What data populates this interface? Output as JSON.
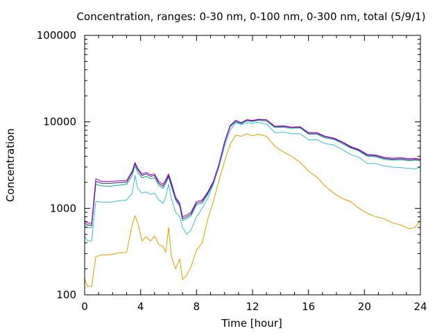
{
  "chart_data": {
    "type": "line",
    "title": "Concentration, ranges: 0-30 nm, 0-100 nm, 0-300 nm, total (5/9/1)",
    "xlabel": "Time [hour]",
    "ylabel": "Concentration",
    "xlim": [
      0,
      24
    ],
    "ylim": [
      100,
      100000
    ],
    "y_scale": "log",
    "grid": false,
    "x_ticks": [
      0,
      4,
      8,
      12,
      16,
      20,
      24
    ],
    "x_tick_labels": [
      "0",
      "4",
      "8",
      "12",
      "16",
      "20",
      "24"
    ],
    "y_ticks": [
      100,
      1000,
      10000,
      100000
    ],
    "y_tick_labels": [
      "100",
      "1000",
      "10000",
      "100000"
    ],
    "series": [
      {
        "color": "#e09a00",
        "x": [
          0,
          0.2,
          0.5,
          0.8,
          1.2,
          1.8,
          2.4,
          3.0,
          3.4,
          3.6,
          3.8,
          4.1,
          4.4,
          4.7,
          5.0,
          5.3,
          5.6,
          5.8,
          6.0,
          6.2,
          6.5,
          6.8,
          7.0,
          7.3,
          7.6,
          8.0,
          8.4,
          8.8,
          9.2,
          9.6,
          10.0,
          10.4,
          10.8,
          11.2,
          11.6,
          12.0,
          12.4,
          13.0,
          13.6,
          14.2,
          14.8,
          15.4,
          16.0,
          16.6,
          17.2,
          17.8,
          18.4,
          19.0,
          19.6,
          20.2,
          20.8,
          21.4,
          22.0,
          22.6,
          23.2,
          23.6,
          24.0
        ],
        "y": [
          155,
          125,
          125,
          275,
          290,
          290,
          305,
          310,
          650,
          820,
          680,
          420,
          470,
          420,
          480,
          380,
          360,
          310,
          600,
          280,
          200,
          260,
          150,
          170,
          210,
          330,
          400,
          750,
          1200,
          2100,
          3500,
          5500,
          7000,
          6800,
          7300,
          6900,
          7200,
          6800,
          5200,
          4500,
          4000,
          3400,
          2700,
          2300,
          1800,
          1500,
          1300,
          1200,
          1000,
          880,
          800,
          760,
          680,
          640,
          580,
          600,
          720
        ]
      },
      {
        "color": "#3fb7d8",
        "x": [
          0,
          0.2,
          0.5,
          0.8,
          1.2,
          1.8,
          2.4,
          3.0,
          3.4,
          3.6,
          3.8,
          4.1,
          4.4,
          4.7,
          5.0,
          5.3,
          5.6,
          5.8,
          6.0,
          6.2,
          6.5,
          6.8,
          7.0,
          7.3,
          7.6,
          8.0,
          8.4,
          8.8,
          9.2,
          9.6,
          10.0,
          10.4,
          10.8,
          11.2,
          11.6,
          12.0,
          12.4,
          13.0,
          13.6,
          14.2,
          14.8,
          15.4,
          16.0,
          16.6,
          17.2,
          17.8,
          18.4,
          19.0,
          19.6,
          20.2,
          20.8,
          21.4,
          22.0,
          22.6,
          23.2,
          23.6,
          24.0
        ],
        "y": [
          480,
          420,
          420,
          1200,
          1180,
          1180,
          1220,
          1250,
          1500,
          2400,
          1700,
          1500,
          1550,
          1450,
          1500,
          1250,
          1150,
          1350,
          1900,
          1300,
          900,
          800,
          600,
          500,
          560,
          800,
          1000,
          1300,
          1900,
          3000,
          5200,
          8000,
          9800,
          9300,
          9800,
          9600,
          9900,
          9400,
          7500,
          7600,
          7300,
          7300,
          6200,
          6200,
          5600,
          5400,
          4800,
          4200,
          3900,
          3300,
          3300,
          3100,
          3000,
          2950,
          2900,
          2850,
          3000
        ]
      },
      {
        "color": "#1aa37a",
        "x": [
          0,
          0.2,
          0.5,
          0.8,
          1.2,
          1.8,
          2.4,
          3.0,
          3.4,
          3.6,
          3.8,
          4.1,
          4.4,
          4.7,
          5.0,
          5.3,
          5.6,
          5.8,
          6.0,
          6.2,
          6.5,
          6.8,
          7.0,
          7.3,
          7.6,
          8.0,
          8.4,
          8.8,
          9.2,
          9.6,
          10.0,
          10.4,
          10.8,
          11.2,
          11.6,
          12.0,
          12.4,
          13.0,
          13.6,
          14.2,
          14.8,
          15.4,
          16.0,
          16.6,
          17.2,
          17.8,
          18.4,
          19.0,
          19.6,
          20.2,
          20.8,
          21.4,
          22.0,
          22.6,
          23.2,
          23.6,
          24.0
        ],
        "y": [
          640,
          600,
          600,
          1900,
          1820,
          1800,
          1850,
          1900,
          2400,
          3100,
          2600,
          2250,
          2350,
          2200,
          2250,
          1850,
          1700,
          1950,
          2300,
          1800,
          1250,
          1050,
          720,
          760,
          820,
          1100,
          1150,
          1450,
          1950,
          3100,
          5600,
          8800,
          10000,
          9500,
          10300,
          10100,
          10400,
          10200,
          8600,
          8700,
          8400,
          8500,
          7200,
          7200,
          6500,
          6300,
          5600,
          5000,
          4600,
          4000,
          3950,
          3700,
          3600,
          3650,
          3550,
          3600,
          3550
        ]
      },
      {
        "color": "#1f1f8c",
        "x": [
          0,
          0.2,
          0.5,
          0.8,
          1.2,
          1.8,
          2.4,
          3.0,
          3.4,
          3.6,
          3.8,
          4.1,
          4.4,
          4.7,
          5.0,
          5.3,
          5.6,
          5.8,
          6.0,
          6.2,
          6.5,
          6.8,
          7.0,
          7.3,
          7.6,
          8.0,
          8.4,
          8.8,
          9.2,
          9.6,
          10.0,
          10.4,
          10.8,
          11.2,
          11.6,
          12.0,
          12.4,
          13.0,
          13.6,
          14.2,
          14.8,
          15.4,
          16.0,
          16.6,
          17.2,
          17.8,
          18.4,
          19.0,
          19.6,
          20.2,
          20.8,
          21.4,
          22.0,
          22.6,
          23.2,
          23.6,
          24.0
        ],
        "y": [
          680,
          640,
          640,
          2050,
          1950,
          1950,
          1980,
          2000,
          2600,
          3300,
          2800,
          2400,
          2500,
          2350,
          2400,
          1950,
          1800,
          2050,
          2400,
          1900,
          1300,
          1100,
          760,
          800,
          860,
          1150,
          1200,
          1500,
          2000,
          3200,
          5800,
          9000,
          10300,
          9700,
          10500,
          10300,
          10600,
          10500,
          8800,
          8900,
          8600,
          8700,
          7400,
          7400,
          6700,
          6400,
          5800,
          5100,
          4700,
          4100,
          4050,
          3800,
          3700,
          3750,
          3650,
          3700,
          3650
        ]
      },
      {
        "color": "#b000b0",
        "x": [
          0,
          0.2,
          0.5,
          0.8,
          1.2,
          1.8,
          2.4,
          3.0,
          3.4,
          3.6,
          3.8,
          4.1,
          4.4,
          4.7,
          5.0,
          5.3,
          5.6,
          5.8,
          6.0,
          6.2,
          6.5,
          6.8,
          7.0,
          7.3,
          7.6,
          8.0,
          8.4,
          8.8,
          9.2,
          9.6,
          10.0,
          10.4,
          10.8,
          11.2,
          11.6,
          12.0,
          12.4,
          13.0,
          13.6,
          14.2,
          14.8,
          15.4,
          16.0,
          16.6,
          17.2,
          17.8,
          18.4,
          19.0,
          19.6,
          20.2,
          20.8,
          21.4,
          22.0,
          22.6,
          23.2,
          23.6,
          24.0
        ],
        "y": [
          720,
          680,
          670,
          2200,
          2050,
          2050,
          2080,
          2100,
          2700,
          3400,
          2900,
          2500,
          2600,
          2450,
          2500,
          2050,
          1900,
          2150,
          2500,
          2000,
          1350,
          1150,
          800,
          840,
          900,
          1200,
          1250,
          1550,
          2050,
          3250,
          5900,
          9100,
          10400,
          9800,
          10600,
          10400,
          10700,
          10600,
          8900,
          9000,
          8700,
          8800,
          7500,
          7500,
          6800,
          6500,
          5900,
          5200,
          4800,
          4200,
          4150,
          3900,
          3800,
          3850,
          3750,
          3800,
          3700
        ]
      }
    ]
  }
}
